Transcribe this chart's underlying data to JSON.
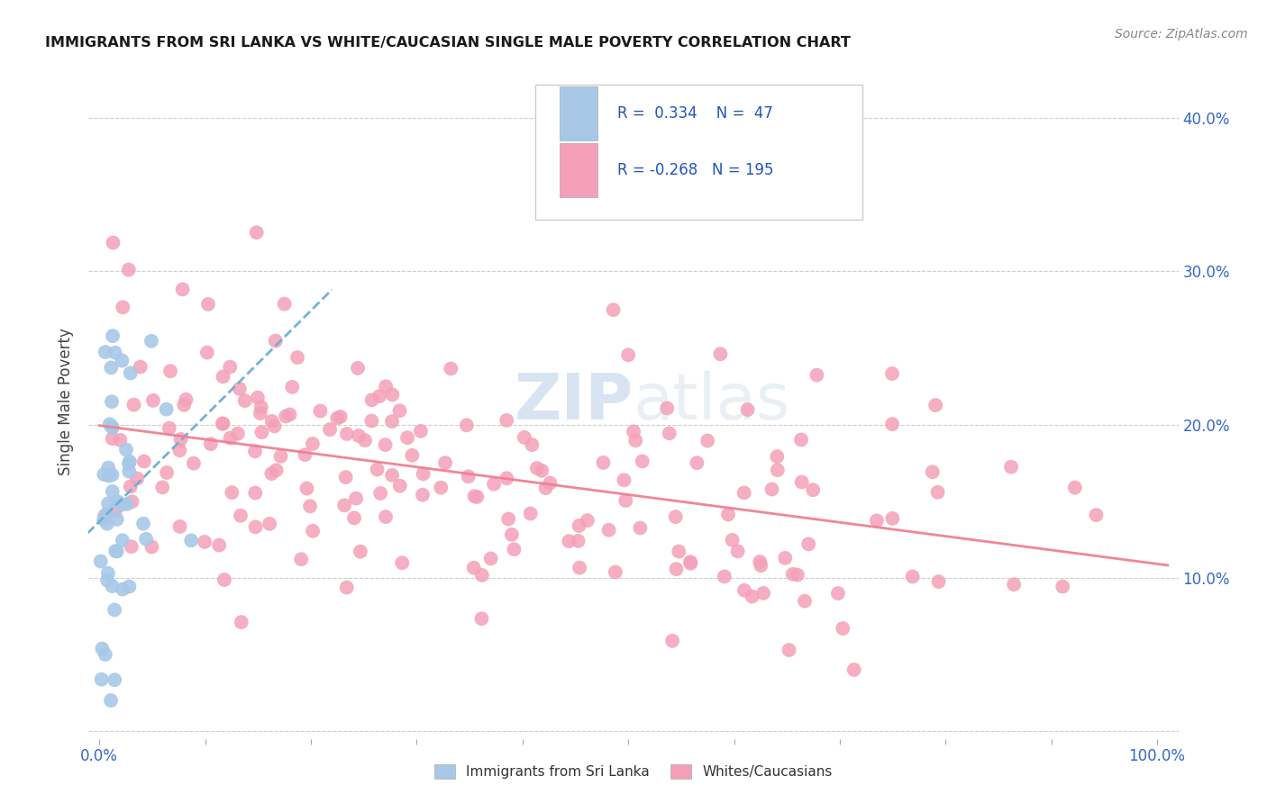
{
  "title": "IMMIGRANTS FROM SRI LANKA VS WHITE/CAUCASIAN SINGLE MALE POVERTY CORRELATION CHART",
  "source": "Source: ZipAtlas.com",
  "ylabel": "Single Male Poverty",
  "legend_label1": "Immigrants from Sri Lanka",
  "legend_label2": "Whites/Caucasians",
  "r1": 0.334,
  "n1": 47,
  "r2": -0.268,
  "n2": 195,
  "color1": "#a8c8e8",
  "color2": "#f4a0b8",
  "line_color1": "#6aaed6",
  "line_color2": "#f08090",
  "watermark_zip": "ZIP",
  "watermark_atlas": "atlas",
  "xlim": [
    -0.01,
    1.02
  ],
  "ylim": [
    -0.005,
    0.435
  ],
  "xtick_pos": [
    0.0,
    0.1,
    0.2,
    0.3,
    0.4,
    0.5,
    0.6,
    0.7,
    0.8,
    0.9,
    1.0
  ],
  "xtick_labels": [
    "0.0%",
    "",
    "",
    "",
    "",
    "",
    "",
    "",
    "",
    "",
    "100.0%"
  ],
  "ytick_pos": [
    0.0,
    0.1,
    0.2,
    0.3,
    0.4
  ],
  "ytick_labels": [
    "",
    "10.0%",
    "20.0%",
    "30.0%",
    "40.0%"
  ]
}
